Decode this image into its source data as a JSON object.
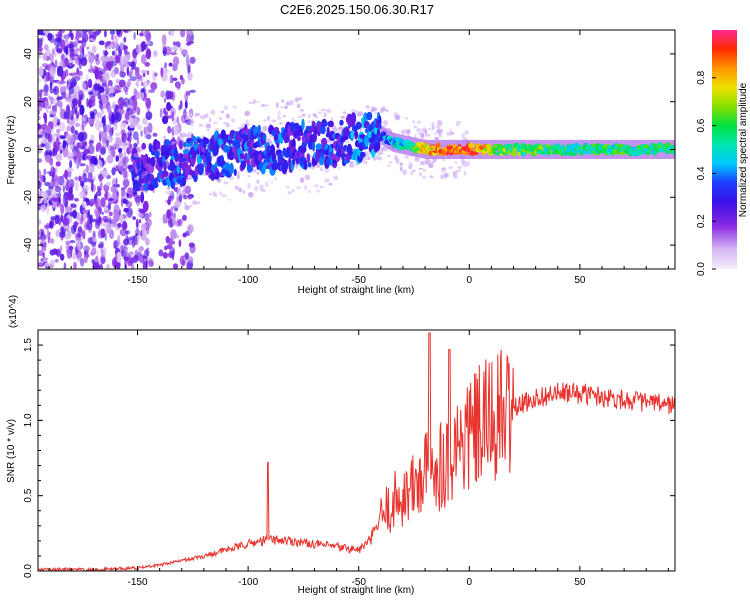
{
  "title": "C2E6.2025.150.06.30.R17",
  "chart_data": [
    {
      "type": "heatmap",
      "xlabel": "Height of straight line (km)",
      "ylabel": "Frequency (Hz)",
      "xlim": [
        -195,
        93
      ],
      "ylim": [
        -50,
        50
      ],
      "xticks": [
        -150,
        -100,
        -50,
        0,
        50
      ],
      "yticks": [
        -40,
        -20,
        0,
        20,
        40
      ],
      "colorbar": {
        "label": "Normalized spectral amplitude",
        "range": [
          0,
          1
        ],
        "ticks": [
          0.0,
          0.2,
          0.4,
          0.6,
          0.8
        ]
      },
      "ridge": {
        "x": [
          -150,
          -140,
          -130,
          -120,
          -110,
          -100,
          -90,
          -80,
          -70,
          -60,
          -50,
          -45,
          -40,
          -35,
          -30,
          -25,
          -20,
          -10,
          0,
          10,
          20,
          30,
          40,
          50,
          60,
          70,
          80,
          93
        ],
        "frequency": [
          -8,
          -6,
          -5,
          -3,
          -2,
          0,
          0,
          1,
          2,
          3,
          5,
          7,
          6,
          3,
          2,
          1,
          0,
          0,
          0,
          0,
          0,
          0,
          0,
          0,
          0,
          0,
          0,
          0
        ],
        "amplitude": [
          0.25,
          0.3,
          0.3,
          0.3,
          0.3,
          0.3,
          0.3,
          0.3,
          0.3,
          0.3,
          0.35,
          0.35,
          0.35,
          0.45,
          0.5,
          0.6,
          0.8,
          0.9,
          0.9,
          0.7,
          0.6,
          0.6,
          0.55,
          0.55,
          0.55,
          0.55,
          0.55,
          0.55
        ]
      }
    },
    {
      "type": "line",
      "xlabel": "Height of straight line (km)",
      "ylabel": "SNR (10 * v/v)",
      "y_multiplier": "(x10^4)",
      "xlim": [
        -195,
        93
      ],
      "ylim": [
        0,
        1.6
      ],
      "xticks": [
        -150,
        -100,
        -50,
        0,
        50
      ],
      "yticks": [
        0.0,
        0.5,
        1.0,
        1.5
      ],
      "color": "#e8322d",
      "series": [
        {
          "x": [
            -195,
            -170,
            -150,
            -140,
            -130,
            -120,
            -110,
            -100,
            -90,
            -80,
            -70,
            -60,
            -50,
            -45,
            -40,
            -35,
            -30,
            -25,
            -20,
            -15,
            -10,
            -5,
            0,
            5,
            10,
            15,
            20,
            30,
            40,
            50,
            60,
            70,
            80,
            93
          ],
          "y": [
            0.01,
            0.01,
            0.02,
            0.04,
            0.07,
            0.1,
            0.14,
            0.18,
            0.21,
            0.2,
            0.18,
            0.16,
            0.14,
            0.2,
            0.35,
            0.45,
            0.5,
            0.55,
            0.65,
            0.7,
            0.75,
            0.85,
            0.9,
            0.95,
            1.0,
            1.03,
            1.08,
            1.15,
            1.18,
            1.18,
            1.16,
            1.14,
            1.12,
            1.1
          ]
        }
      ],
      "spikes": [
        {
          "x": -91,
          "y": 0.72
        },
        {
          "x": -18,
          "y": 1.58
        },
        {
          "x": -9,
          "y": 1.47
        }
      ]
    }
  ]
}
